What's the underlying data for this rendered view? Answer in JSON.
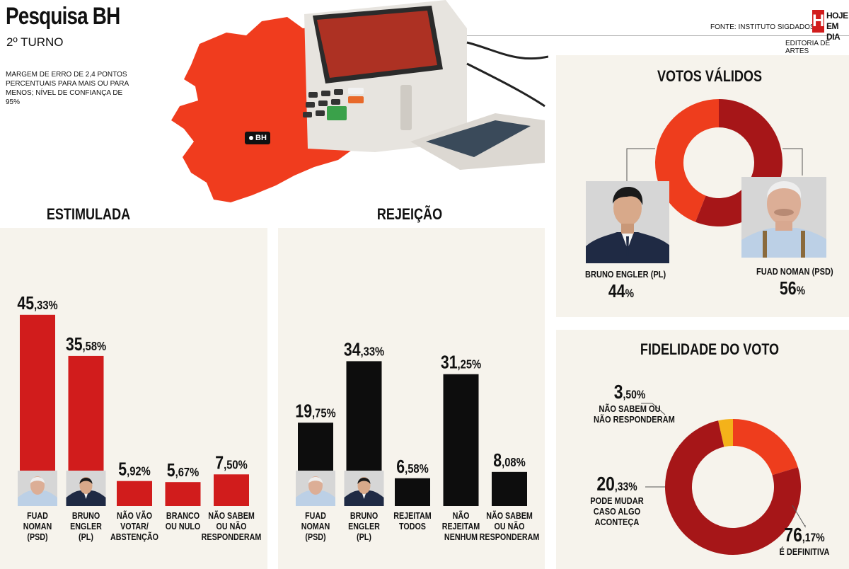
{
  "header": {
    "title": "Pesquisa BH",
    "subtitle": "2º TURNO",
    "margin_note": "MARGEM DE ERRO DE 2,4 PONTOS PERCENTUAIS PARA MAIS OU PARA MENOS; NÍVEL DE CONFIANÇA DE 95%",
    "source": "FONTE: INSTITUTO SIGDADOS",
    "editorial": "EDITORIA DE ARTES",
    "logo_mark": "H",
    "logo_line1": "HOJE",
    "logo_line2": "EM DIA"
  },
  "map": {
    "marker_label": "BH",
    "color": "#f03c1e"
  },
  "colors": {
    "red": "#d11c1c",
    "dark_red": "#a61618",
    "orange_red": "#ee3d1d",
    "yellow": "#f4b21a",
    "black": "#0d0d0d",
    "panel": "#f6f3ec"
  },
  "chart_data": [
    {
      "type": "bar",
      "title": "ESTIMULADA",
      "color": "#d11c1c",
      "categories": [
        "FUAD NOMAN (PSD)",
        "BRUNO ENGLER (PL)",
        "NÃO VÃO VOTAR/ ABSTENÇÃO",
        "BRANCO OU NULO",
        "NÃO SABEM OU NÃO RESPONDERAM"
      ],
      "category_lines": [
        [
          "FUAD",
          "NOMAN",
          "(PSD)"
        ],
        [
          "BRUNO",
          "ENGLER",
          "(PL)"
        ],
        [
          "NÃO VÃO",
          "VOTAR/",
          "ABSTENÇÃO"
        ],
        [
          "BRANCO",
          "OU NULO"
        ],
        [
          "NÃO SABEM",
          "OU NÃO",
          "RESPONDERAM"
        ]
      ],
      "values": [
        45.33,
        35.58,
        5.92,
        5.67,
        7.5
      ],
      "labels": [
        [
          "45",
          ",33%"
        ],
        [
          "35",
          ",58%"
        ],
        [
          "5",
          ",92%"
        ],
        [
          "5",
          ",67%"
        ],
        [
          "7",
          ",50%"
        ]
      ],
      "photos": [
        "fuad",
        "bruno",
        null,
        null,
        null
      ],
      "ylim": [
        0,
        50
      ]
    },
    {
      "type": "bar",
      "title": "REJEIÇÃO",
      "color": "#0d0d0d",
      "categories": [
        "FUAD NOMAN (PSD)",
        "BRUNO ENGLER (PL)",
        "REJEITAM TODOS",
        "NÃO REJEITAM NENHUM",
        "NÃO SABEM OU NÃO RESPONDERAM"
      ],
      "category_lines": [
        [
          "FUAD",
          "NOMAN",
          "(PSD)"
        ],
        [
          "BRUNO",
          "ENGLER",
          "(PL)"
        ],
        [
          "REJEITAM",
          "TODOS"
        ],
        [
          "NÃO",
          "REJEITAM",
          "NENHUM"
        ],
        [
          "NÃO SABEM",
          "OU NÃO",
          "RESPONDERAM"
        ]
      ],
      "values": [
        19.75,
        34.33,
        6.58,
        31.25,
        8.08
      ],
      "labels": [
        [
          "19",
          ",75%"
        ],
        [
          "34",
          ",33%"
        ],
        [
          "6",
          ",58%"
        ],
        [
          "31",
          ",25%"
        ],
        [
          "8",
          ",08%"
        ]
      ],
      "photos": [
        "fuad",
        "bruno",
        null,
        null,
        null
      ],
      "ylim": [
        0,
        50
      ]
    },
    {
      "type": "pie",
      "title": "VOTOS VÁLIDOS",
      "donut": true,
      "slices": [
        {
          "name": "BRUNO ENGLER (PL)",
          "value": 44,
          "label": "44%",
          "color": "#ee3d1d"
        },
        {
          "name": "FUAD NOMAN (PSD)",
          "value": 56,
          "label": "56%",
          "color": "#a61618"
        }
      ]
    },
    {
      "type": "pie",
      "title": "FIDELIDADE DO VOTO",
      "donut": true,
      "slices": [
        {
          "name": "NÃO SABEM OU NÃO RESPONDERAM",
          "value": 3.5,
          "label": "3,50%",
          "color": "#f4b21a"
        },
        {
          "name": "PODE MUDAR CASO ALGO ACONTEÇA",
          "value": 20.33,
          "label": "20,33%",
          "color": "#ee3d1d"
        },
        {
          "name": "É DEFINITIVA",
          "value": 76.17,
          "label": "76,17%",
          "color": "#a61618"
        }
      ]
    }
  ],
  "votos": {
    "bruno_label": "BRUNO ENGLER (PL)",
    "bruno_pct": "44",
    "fuad_label": "FUAD NOMAN (PSD)",
    "fuad_pct": "56",
    "pct_sign": "%"
  },
  "fidelidade": {
    "a_num": "3",
    "a_dec": ",50%",
    "a_lines": [
      "NÃO SABEM OU",
      "NÃO RESPONDERAM"
    ],
    "b_num": "20",
    "b_dec": ",33%",
    "b_lines": [
      "PODE MUDAR",
      "CASO ALGO",
      "ACONTEÇA"
    ],
    "c_num": "76",
    "c_dec": ",17%",
    "c_lines": [
      "É DEFINITIVA"
    ]
  }
}
